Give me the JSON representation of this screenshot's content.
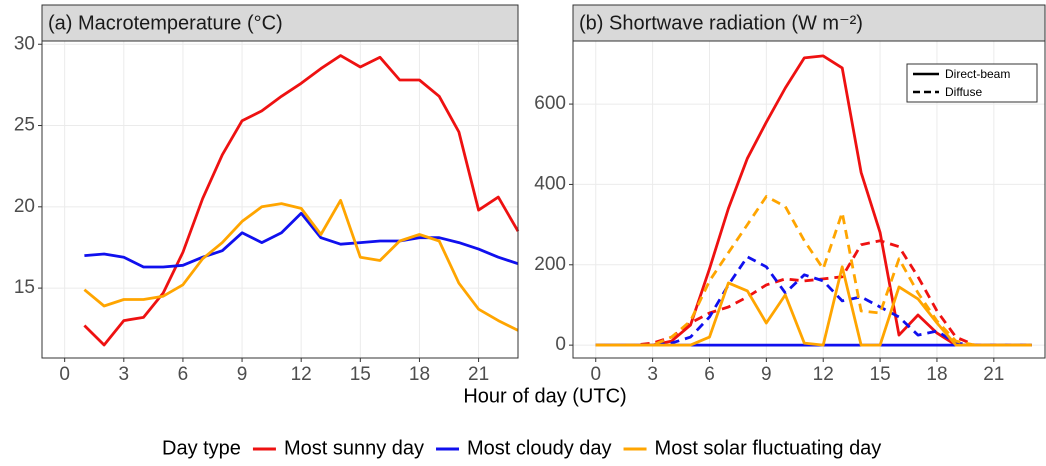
{
  "chart_data": [
    {
      "type": "line",
      "title": "(a) Macrotemperature (°C)",
      "x": [
        1,
        2,
        3,
        4,
        5,
        6,
        7,
        8,
        9,
        10,
        11,
        12,
        13,
        14,
        15,
        16,
        17,
        18,
        19,
        20,
        21,
        22,
        23
      ],
      "xlim": [
        -1.15,
        23.0
      ],
      "xticks": [
        0,
        3,
        6,
        9,
        12,
        15,
        18,
        21
      ],
      "ylim": [
        10.7,
        30.2
      ],
      "yticks": [
        15,
        20,
        25,
        30
      ],
      "grid": true,
      "series": [
        {
          "name": "Most sunny day",
          "color": "#ee1111",
          "dash": "solid",
          "values": [
            12.7,
            11.5,
            13.0,
            13.2,
            14.7,
            17.2,
            20.5,
            23.2,
            25.3,
            25.9,
            26.8,
            27.6,
            28.5,
            29.3,
            28.6,
            29.2,
            27.8,
            27.8,
            26.8,
            24.6,
            19.8,
            20.6,
            18.5
          ]
        },
        {
          "name": "Most cloudy day",
          "color": "#1010ee",
          "dash": "solid",
          "values": [
            17.0,
            17.1,
            16.9,
            16.3,
            16.3,
            16.4,
            16.9,
            17.3,
            18.4,
            17.8,
            18.4,
            19.6,
            18.1,
            17.7,
            17.8,
            17.9,
            17.9,
            18.1,
            18.1,
            17.8,
            17.4,
            16.9,
            16.5
          ]
        },
        {
          "name": "Most solar fluctuating day",
          "color": "#ffa500",
          "dash": "solid",
          "values": [
            14.9,
            13.9,
            14.3,
            14.3,
            14.5,
            15.2,
            16.8,
            17.8,
            19.1,
            20.0,
            20.2,
            19.9,
            18.3,
            20.4,
            16.9,
            16.7,
            17.9,
            18.3,
            17.9,
            15.3,
            13.7,
            13.0,
            12.4
          ]
        }
      ]
    },
    {
      "type": "line",
      "title": "(b) Shortwave radiation (W m⁻²)",
      "x": [
        0,
        1,
        2,
        3,
        4,
        5,
        6,
        7,
        8,
        9,
        10,
        11,
        12,
        13,
        14,
        15,
        16,
        17,
        18,
        19,
        20,
        21,
        22,
        23
      ],
      "xlim": [
        -1.2,
        23.7
      ],
      "xticks": [
        0,
        3,
        6,
        9,
        12,
        15,
        18,
        21
      ],
      "ylim": [
        -32,
        757
      ],
      "yticks": [
        0,
        200,
        400,
        600
      ],
      "grid": true,
      "linetype_legend": [
        {
          "label": "Direct-beam",
          "dash": "solid"
        },
        {
          "label": "Diffuse",
          "dash": "dashed"
        }
      ],
      "series": [
        {
          "name": "Most sunny day",
          "color": "#ee1111",
          "dash": "solid",
          "values": [
            0,
            0,
            0,
            0,
            10,
            50,
            190,
            340,
            465,
            555,
            640,
            715,
            720,
            690,
            430,
            280,
            25,
            75,
            30,
            0,
            0,
            0,
            0,
            0
          ]
        },
        {
          "name": "Most sunny day",
          "color": "#ee1111",
          "dash": "dashed",
          "values": [
            0,
            0,
            0,
            5,
            20,
            55,
            80,
            95,
            120,
            150,
            165,
            160,
            165,
            170,
            250,
            260,
            245,
            170,
            85,
            20,
            0,
            0,
            0,
            0
          ]
        },
        {
          "name": "Most cloudy day",
          "color": "#1010ee",
          "dash": "solid",
          "values": [
            0,
            0,
            0,
            0,
            0,
            0,
            0,
            0,
            0,
            0,
            0,
            0,
            0,
            0,
            0,
            0,
            0,
            0,
            0,
            0,
            0,
            0,
            0,
            0
          ]
        },
        {
          "name": "Most cloudy day",
          "color": "#1010ee",
          "dash": "dashed",
          "values": [
            0,
            0,
            0,
            0,
            5,
            20,
            70,
            150,
            220,
            195,
            130,
            175,
            160,
            110,
            120,
            95,
            70,
            25,
            35,
            5,
            0,
            0,
            0,
            0
          ]
        },
        {
          "name": "Most solar fluctuating day",
          "color": "#ffa500",
          "dash": "solid",
          "values": [
            0,
            0,
            0,
            0,
            0,
            0,
            20,
            155,
            135,
            55,
            125,
            5,
            0,
            195,
            0,
            0,
            145,
            115,
            55,
            0,
            0,
            0,
            0,
            0
          ]
        },
        {
          "name": "Most solar fluctuating day",
          "color": "#ffa500",
          "dash": "dashed",
          "values": [
            0,
            0,
            0,
            0,
            20,
            60,
            160,
            230,
            300,
            370,
            345,
            260,
            190,
            330,
            85,
            80,
            215,
            130,
            60,
            10,
            0,
            0,
            0,
            0
          ]
        }
      ]
    }
  ],
  "xlabel": "Hour of day (UTC)",
  "legend_title": "Day type"
}
